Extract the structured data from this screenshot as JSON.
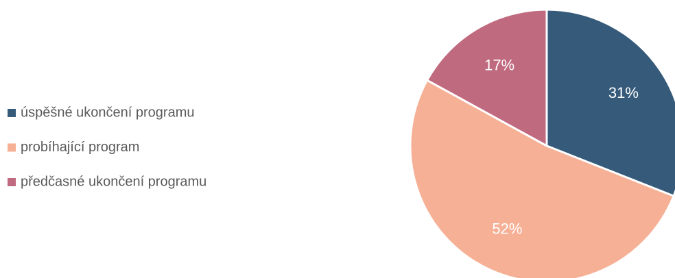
{
  "chart_data": {
    "type": "pie",
    "categories": [
      "úspěšné ukončení programu",
      "probíhající program",
      "předčasné ukončení programu"
    ],
    "values": [
      31,
      52,
      17
    ],
    "value_labels": [
      "31%",
      "52%",
      "17%"
    ],
    "colors": [
      "#365a7a",
      "#f6b095",
      "#c06a80"
    ],
    "legend": "left"
  }
}
